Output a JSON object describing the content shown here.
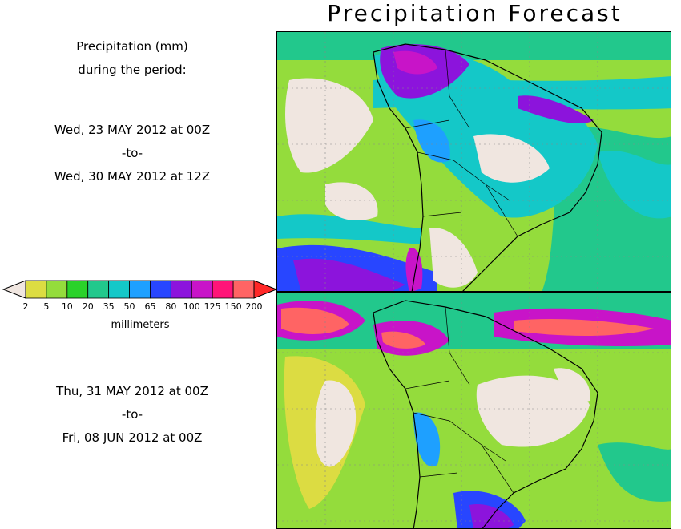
{
  "title": "Precipitation Forecast",
  "legend": {
    "header_line1": "Precipitation (mm)",
    "header_line2": "during the period:",
    "units": "millimeters",
    "ticks": [
      "2",
      "5",
      "10",
      "20",
      "35",
      "50",
      "65",
      "80",
      "100",
      "125",
      "150",
      "200"
    ],
    "colors": [
      "#f0e6e0",
      "#dcdc42",
      "#94dc3c",
      "#2ad22a",
      "#22c88c",
      "#14c8c8",
      "#1ea0ff",
      "#2846ff",
      "#8c14dc",
      "#c814c8",
      "#ff1478",
      "#ff6464",
      "#ff2828"
    ]
  },
  "period1": {
    "start": "Wed, 23 MAY 2012 at 00Z",
    "sep": "-to-",
    "end": "Wed, 30 MAY 2012 at 12Z"
  },
  "period2": {
    "start": "Thu, 31 MAY 2012 at 00Z",
    "sep": "-to-",
    "end": "Fri, 08 JUN 2012 at 00Z"
  },
  "map_colors": {
    "dry": "#f0e6e0",
    "ocean_light": "#94dc3c",
    "land_line": "#000000",
    "grid": "#888888"
  }
}
